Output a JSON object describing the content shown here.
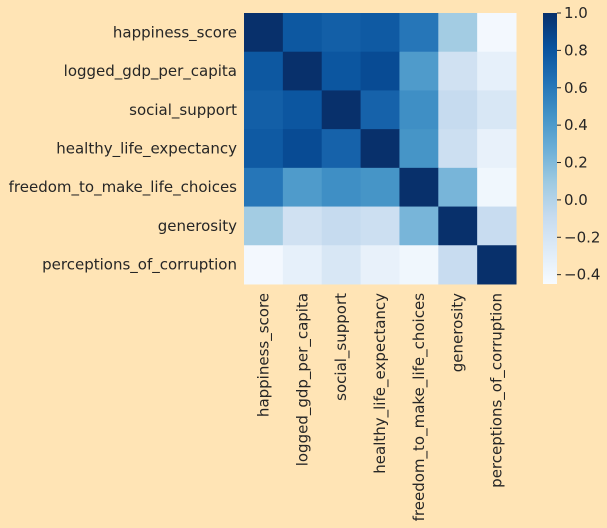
{
  "chart_data": {
    "type": "heatmap",
    "title": "",
    "xlabel": "",
    "ylabel": "",
    "background": "#FFE4B5",
    "colormap": "Blues",
    "colorbar": {
      "vmin": -0.45,
      "vmax": 1.0,
      "ticks": [
        "1.0",
        "0.8",
        "0.6",
        "0.4",
        "0.2",
        "0.0",
        "−0.2",
        "−0.4"
      ],
      "tick_values": [
        1.0,
        0.8,
        0.6,
        0.4,
        0.2,
        0.0,
        -0.2,
        -0.4
      ]
    },
    "labels": [
      "happiness_score",
      "logged_gdp_per_capita",
      "social_support",
      "healthy_life_expectancy",
      "freedom_to_make_life_choices",
      "generosity",
      "perceptions_of_corruption"
    ],
    "values": [
      [
        1.0,
        0.78,
        0.74,
        0.77,
        0.61,
        0.07,
        -0.42
      ],
      [
        0.78,
        1.0,
        0.79,
        0.85,
        0.4,
        -0.16,
        -0.33
      ],
      [
        0.74,
        0.79,
        1.0,
        0.72,
        0.47,
        -0.09,
        -0.22
      ],
      [
        0.77,
        0.85,
        0.72,
        1.0,
        0.44,
        -0.13,
        -0.34
      ],
      [
        0.61,
        0.4,
        0.47,
        0.44,
        1.0,
        0.23,
        -0.4
      ],
      [
        0.07,
        -0.16,
        -0.09,
        -0.13,
        0.23,
        1.0,
        -0.1
      ],
      [
        -0.42,
        -0.33,
        -0.22,
        -0.34,
        -0.4,
        -0.1,
        1.0
      ]
    ]
  }
}
